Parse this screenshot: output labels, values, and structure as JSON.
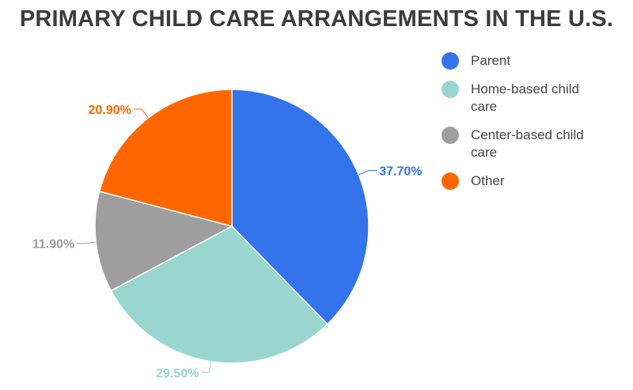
{
  "chart_data": {
    "type": "pie",
    "title": "PRIMARY CHILD CARE ARRANGEMENTS IN THE U.S.",
    "categories": [
      "Parent",
      "Home-based child care",
      "Center-based child care",
      "Other"
    ],
    "legend_labels": [
      [
        "Parent"
      ],
      [
        "Home-based child",
        "care"
      ],
      [
        "Center-based child",
        "care"
      ],
      [
        "Other"
      ]
    ],
    "values": [
      37.7,
      29.5,
      11.9,
      20.9
    ],
    "data_labels": [
      "37.70%",
      "29.50%",
      "11.90%",
      "20.90%"
    ],
    "colors": [
      "#3474eb",
      "#99d6d0",
      "#9e9e9e",
      "#ff6600"
    ],
    "label_colors": [
      "#3474eb",
      "#99d6d0",
      "#9e9e9e",
      "#ff6600"
    ],
    "legend_position": "right",
    "start": "top, clockwise"
  }
}
